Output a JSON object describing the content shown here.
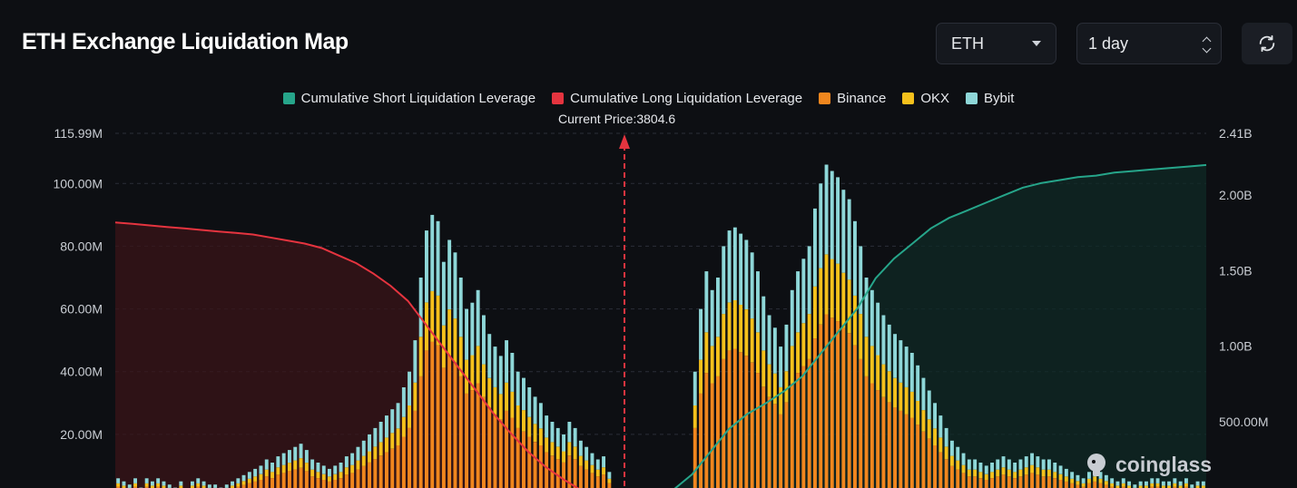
{
  "header": {
    "title": "ETH Exchange Liquidation Map",
    "symbol_select": "ETH",
    "timeframe_select": "1 day",
    "refresh_icon": "refresh-icon"
  },
  "colors": {
    "background": "#0d0f13",
    "short_cumulative": "#26a58a",
    "long_cumulative": "#e5343f",
    "binance": "#f0861e",
    "okx": "#f5c11c",
    "bybit": "#8ed7d8"
  },
  "branding": {
    "logo_text": "coinglass"
  },
  "chart_data": {
    "type": "bar",
    "title": "ETH Exchange Liquidation Map",
    "legend": [
      "Cumulative Short Liquidation Leverage",
      "Cumulative Long Liquidation Leverage",
      "Binance",
      "OKX",
      "Bybit"
    ],
    "legend_position": "top-center",
    "current_price_label": "Current Price:3804.6",
    "current_price": 3804.6,
    "y_left": {
      "ticks": [
        "115.99M",
        "100.00M",
        "80.00M",
        "60.00M",
        "40.00M",
        "20.00M"
      ],
      "range": [
        0,
        115.99
      ]
    },
    "y_right": {
      "ticks": [
        "2.41B",
        "2.00B",
        "1.50B",
        "1.00B",
        "500.00M"
      ],
      "range": [
        0,
        2.41
      ]
    },
    "grid": true,
    "bar_values_M": [
      6,
      5,
      4,
      6,
      3,
      6,
      5,
      6,
      5,
      4,
      3,
      5,
      2,
      5,
      6,
      5,
      4,
      4,
      3,
      4,
      5,
      6,
      7,
      8,
      9,
      10,
      12,
      11,
      13,
      14,
      15,
      16,
      17,
      15,
      12,
      11,
      10,
      9,
      10,
      11,
      13,
      14,
      16,
      18,
      20,
      22,
      24,
      26,
      28,
      30,
      35,
      40,
      50,
      70,
      85,
      90,
      88,
      75,
      82,
      78,
      70,
      60,
      62,
      66,
      58,
      52,
      48,
      45,
      50,
      46,
      40,
      38,
      35,
      32,
      30,
      26,
      24,
      22,
      20,
      24,
      22,
      18,
      16,
      14,
      12,
      13,
      8,
      0,
      0,
      0,
      0,
      0,
      2,
      0,
      0,
      0,
      0,
      0,
      0,
      0,
      2,
      40,
      60,
      72,
      66,
      70,
      80,
      85,
      86,
      84,
      82,
      78,
      72,
      64,
      58,
      54,
      48,
      55,
      66,
      72,
      76,
      80,
      92,
      100,
      106,
      104,
      102,
      98,
      95,
      88,
      80,
      70,
      66,
      62,
      58,
      55,
      52,
      50,
      48,
      46,
      42,
      38,
      34,
      30,
      26,
      22,
      18,
      16,
      14,
      12,
      12,
      11,
      10,
      11,
      12,
      13,
      12,
      11,
      12,
      13,
      14,
      13,
      12,
      12,
      11,
      10,
      9,
      8,
      7,
      6,
      8,
      9,
      8,
      7,
      6,
      5,
      6,
      5,
      4,
      5,
      5,
      6,
      6,
      5,
      5,
      6,
      5,
      6,
      4,
      5,
      5
    ],
    "cumulative_long_B": [
      1.82,
      1.81,
      1.8,
      1.79,
      1.78,
      1.77,
      1.76,
      1.75,
      1.74,
      1.72,
      1.7,
      1.68,
      1.65,
      1.6,
      1.55,
      1.48,
      1.4,
      1.3,
      1.15,
      1.0,
      0.85,
      0.7,
      0.55,
      0.42,
      0.3,
      0.2,
      0.12,
      0.05,
      0.0
    ],
    "cumulative_short_B": [
      0.0,
      0.05,
      0.15,
      0.3,
      0.45,
      0.55,
      0.62,
      0.7,
      0.8,
      0.95,
      1.1,
      1.25,
      1.45,
      1.58,
      1.68,
      1.78,
      1.85,
      1.9,
      1.95,
      2.0,
      2.05,
      2.08,
      2.1,
      2.12,
      2.13,
      2.15,
      2.16,
      2.17,
      2.18,
      2.19,
      2.2
    ]
  }
}
